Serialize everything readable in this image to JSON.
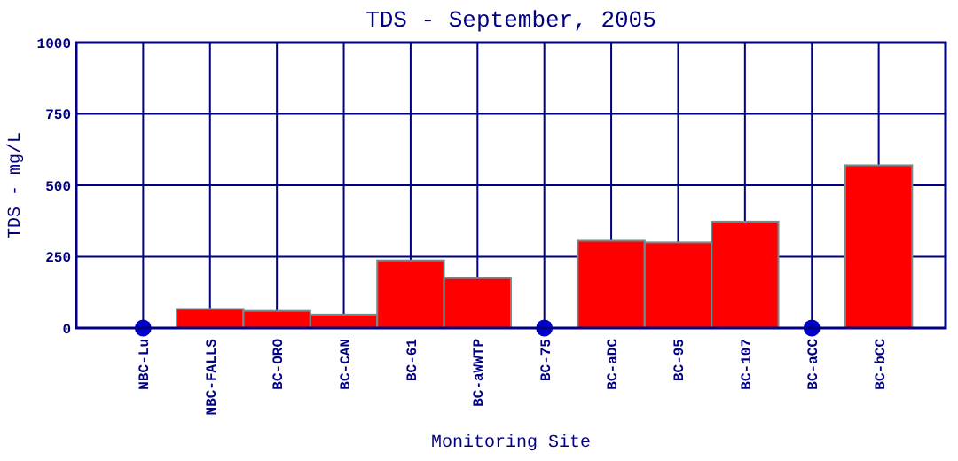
{
  "chart_data": {
    "type": "bar",
    "title": "TDS - September, 2005",
    "xlabel": "Monitoring Site",
    "ylabel": "TDS - mg/L",
    "categories": [
      "NBC-Lu",
      "NBC-FALLS",
      "BC-ORO",
      "BC-CAN",
      "BC-61",
      "BC-aWWTP",
      "BC-75",
      "BC-aDC",
      "BC-95",
      "BC-107",
      "BC-aCC",
      "BC-bCC"
    ],
    "series": [
      {
        "color": "#ff0000",
        "values": [
          null,
          67,
          60,
          47,
          237,
          175,
          null,
          306,
          300,
          373,
          null,
          570
        ]
      },
      {
        "type": "scatter",
        "color": "#0000cc",
        "x": [
          "NBC-Lu",
          "BC-75",
          "BC-aCC"
        ],
        "values": [
          0,
          0,
          0
        ]
      }
    ],
    "ylim": [
      0,
      1000
    ],
    "yticks": [
      0,
      250,
      500,
      750,
      1000
    ],
    "grid": true,
    "marker": "circle"
  }
}
